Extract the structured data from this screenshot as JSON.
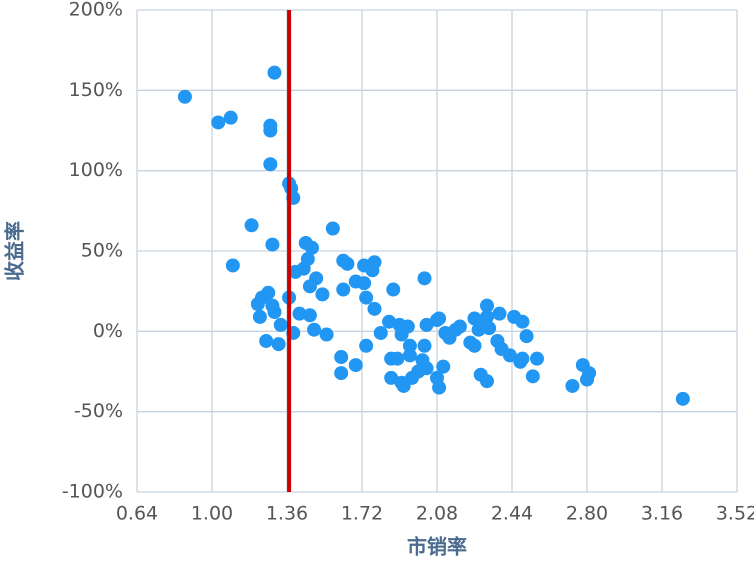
{
  "chart_data": {
    "type": "scatter",
    "x_label": "市销率",
    "y_label": "收益率",
    "color": "#2196f3",
    "x": [
      0.87,
      1.03,
      1.09,
      1.3,
      1.28,
      1.28,
      1.28,
      1.37,
      1.38,
      1.39,
      1.19,
      1.1,
      1.29,
      1.45,
      1.48,
      1.46,
      1.58,
      1.63,
      1.65,
      1.63,
      1.53,
      1.4,
      1.44,
      1.5,
      1.47,
      1.69,
      1.73,
      1.73,
      1.78,
      1.77,
      1.74,
      1.78,
      1.87,
      2.02,
      1.37,
      1.22,
      1.27,
      1.24,
      1.29,
      1.3,
      1.23,
      1.42,
      1.47,
      1.33,
      1.39,
      1.49,
      1.55,
      1.26,
      1.32,
      1.62,
      1.62,
      1.69,
      1.74,
      1.81,
      1.85,
      1.9,
      1.94,
      1.91,
      1.95,
      1.86,
      1.89,
      1.86,
      1.91,
      1.92,
      1.96,
      1.99,
      1.95,
      2.01,
      2.02,
      2.03,
      2.08,
      2.09,
      2.12,
      2.14,
      2.17,
      2.19,
      2.03,
      2.08,
      2.09,
      2.11,
      2.24,
      2.26,
      2.28,
      2.26,
      2.29,
      2.32,
      2.32,
      2.33,
      2.29,
      2.32,
      2.37,
      2.39,
      2.43,
      2.48,
      2.49,
      2.38,
      2.45,
      2.49,
      2.51,
      2.56,
      2.54,
      2.73,
      2.78,
      2.81,
      2.8,
      3.26
    ],
    "values": [
      146,
      130,
      133,
      161,
      128,
      125,
      104,
      92,
      89,
      83,
      66,
      41,
      54,
      55,
      52,
      45,
      64,
      44,
      42,
      26,
      23,
      37,
      39,
      33,
      28,
      31,
      30,
      41,
      43,
      38,
      21,
      14,
      26,
      33,
      21,
      17,
      24,
      21,
      16,
      12,
      9,
      11,
      10,
      4,
      -1,
      1,
      -2,
      -6,
      -8,
      -16,
      -26,
      -21,
      -9,
      -1,
      6,
      4,
      3,
      -2,
      -9,
      -17,
      -17,
      -29,
      -32,
      -34,
      -29,
      -25,
      -15,
      -18,
      -9,
      4,
      7,
      8,
      -1,
      -4,
      1,
      3,
      -23,
      -29,
      -35,
      -22,
      -7,
      -9,
      1,
      8,
      6,
      9,
      16,
      2,
      -27,
      -31,
      -6,
      -11,
      -15,
      -19,
      -17,
      11,
      9,
      6,
      -3,
      -17,
      -28,
      -34,
      -21,
      -26,
      -30,
      -42
    ],
    "reference_line": {
      "x": 1.37,
      "color": "#cc0000"
    },
    "xlim": [
      0.64,
      3.52
    ],
    "xticks": [
      0.64,
      {
        "value": 1.0,
        "label": "1.00"
      },
      1.36,
      1.72,
      2.08,
      2.44,
      {
        "value": 2.8,
        "label": "2.80"
      },
      3.16,
      3.52
    ],
    "ylim": [
      -100,
      200
    ],
    "yticks": [
      {
        "value": -100,
        "label": "-100%"
      },
      {
        "value": -50,
        "label": "-50%"
      },
      {
        "value": 0,
        "label": "0%"
      },
      {
        "value": 50,
        "label": "50%"
      },
      {
        "value": 100,
        "label": "100%"
      },
      {
        "value": 150,
        "label": "150%"
      },
      {
        "value": 200,
        "label": "200%"
      }
    ],
    "grid": true
  }
}
